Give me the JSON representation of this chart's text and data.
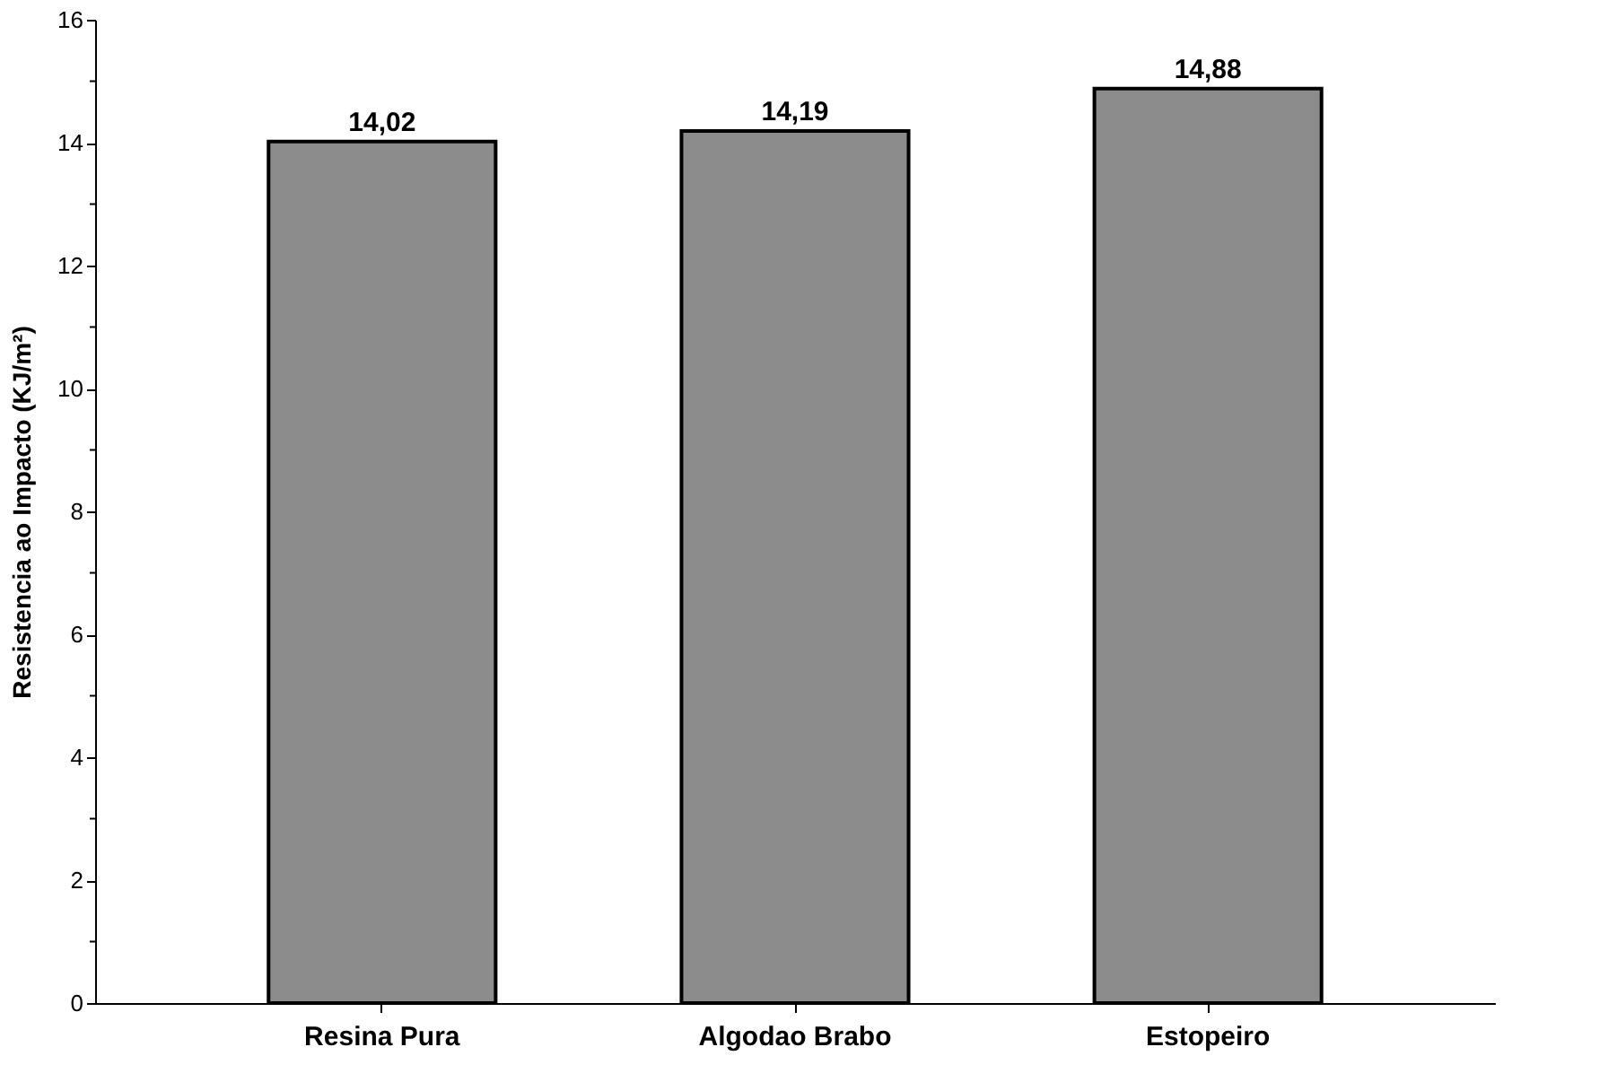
{
  "chart_data": {
    "type": "bar",
    "ylabel": "Resistencia ao Impacto  (KJ/m²)",
    "categories": [
      "Resina Pura",
      "Algodao Brabo",
      "Estopeiro"
    ],
    "values": [
      14.02,
      14.19,
      14.88
    ],
    "value_labels": [
      "14,02",
      "14,19",
      "14,88"
    ],
    "color": "#8c8c8c",
    "ylim": [
      0,
      16
    ],
    "yticks": [
      0,
      {
        "value": 1,
        "label": null
      },
      2,
      {
        "value": 3,
        "label": null
      },
      4,
      {
        "value": 5,
        "label": null
      },
      6,
      {
        "value": 7,
        "label": null
      },
      8,
      {
        "value": 9,
        "label": null
      },
      10,
      {
        "value": 11,
        "label": null
      },
      12,
      {
        "value": 13,
        "label": null
      },
      14,
      {
        "value": 15,
        "label": null
      },
      16
    ],
    "grid": false
  }
}
